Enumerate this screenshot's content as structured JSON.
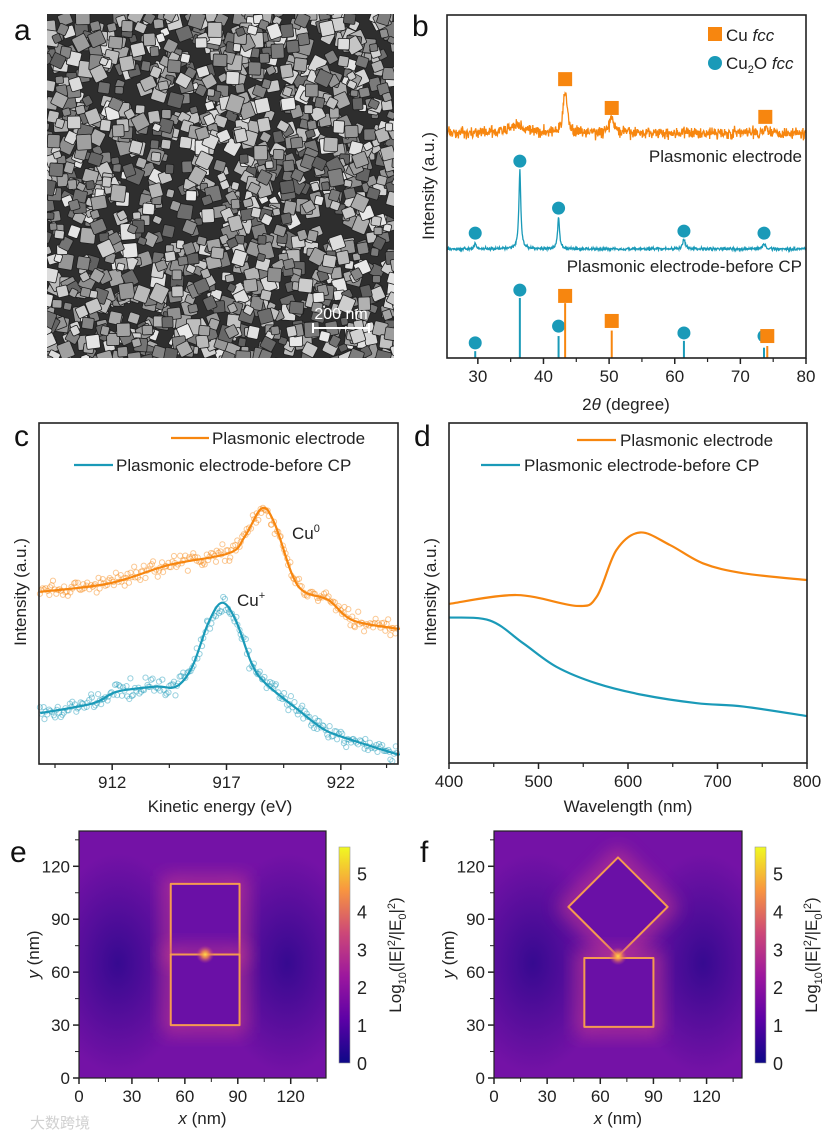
{
  "figure": {
    "panel_labels": {
      "a": "a",
      "b": "b",
      "c": "c",
      "d": "d",
      "e": "e",
      "f": "f"
    },
    "watermark": "大数跨境"
  },
  "panel_a": {
    "scale_bar": "200 nm"
  },
  "chart_data": [
    {
      "panel": "b",
      "type": "line",
      "xlabel": {
        "pre": "2",
        "theta": "θ",
        "post": " (degree)"
      },
      "ylabel": "Intensity (a.u.)",
      "xlim": [
        25.3,
        80
      ],
      "ylim": [
        0,
        100
      ],
      "xticks": [
        30,
        40,
        50,
        60,
        70,
        80
      ],
      "legend": {
        "cu": {
          "text": "Cu ",
          "italic": "fcc",
          "color": "#f7860f",
          "marker": "square"
        },
        "cu2o": {
          "text": "Cu",
          "sub": "2",
          "text2": "O ",
          "italic": "fcc",
          "color": "#1a9ab8",
          "marker": "circle"
        }
      },
      "series": [
        {
          "name": "Plasmonic electrode",
          "color": "#f7860f",
          "baseline": 65.6,
          "noise": 1.4,
          "peaks": [
            {
              "x": 36.0,
              "h": 2.5,
              "w": 1.2
            },
            {
              "x": 43.3,
              "h": 12.5,
              "w": 0.35
            },
            {
              "x": 50.4,
              "h": 4.5,
              "w": 0.4
            },
            {
              "x": 74.0,
              "h": 1.5,
              "w": 0.5
            }
          ],
          "markers": [
            {
              "x": 43.3,
              "y": 81.3,
              "shape": "square"
            },
            {
              "x": 50.4,
              "y": 72.9,
              "shape": "square"
            },
            {
              "x": 73.8,
              "y": 70.3,
              "shape": "square"
            }
          ]
        },
        {
          "name": "Plasmonic electrode-before CP",
          "color": "#1a9ab8",
          "baseline": 31.8,
          "noise": 0.35,
          "peaks": [
            {
              "x": 29.6,
              "h": 1.7,
              "w": 0.2
            },
            {
              "x": 36.4,
              "h": 23,
              "w": 0.18
            },
            {
              "x": 42.3,
              "h": 9.2,
              "w": 0.18
            },
            {
              "x": 61.4,
              "h": 2.6,
              "w": 0.25
            },
            {
              "x": 73.6,
              "h": 1.4,
              "w": 0.25
            }
          ],
          "markers": [
            {
              "x": 29.6,
              "y": 36.4,
              "shape": "circle"
            },
            {
              "x": 36.4,
              "y": 57.4,
              "shape": "circle"
            },
            {
              "x": 42.3,
              "y": 43.7,
              "shape": "circle"
            },
            {
              "x": 61.4,
              "y": 37.0,
              "shape": "circle"
            },
            {
              "x": 73.6,
              "y": 36.4,
              "shape": "circle"
            }
          ]
        }
      ],
      "reference": {
        "cu2o": {
          "color": "#1a9ab8",
          "sticks": [
            {
              "x": 29.6,
              "h": 2.0,
              "marker_y": 4.4
            },
            {
              "x": 36.4,
              "h": 17.5,
              "marker_y": 19.8
            },
            {
              "x": 42.3,
              "h": 6.4,
              "marker_y": 9.3
            },
            {
              "x": 61.4,
              "h": 5.0,
              "marker_y": 7.3
            },
            {
              "x": 73.6,
              "h": 3.0,
              "marker_y": 6.4
            }
          ]
        },
        "cu": {
          "color": "#f7860f",
          "sticks": [
            {
              "x": 43.3,
              "h": 16.0,
              "marker_y": 18.1
            },
            {
              "x": 50.4,
              "h": 8.0,
              "marker_y": 10.8
            },
            {
              "x": 74.1,
              "h": 3.5,
              "marker_y": 6.4
            }
          ]
        }
      },
      "annotations": {
        "top": "Plasmonic electrode",
        "middle": "Plasmonic electrode-before CP"
      }
    },
    {
      "panel": "c",
      "type": "scatter+line",
      "xlabel": "Kinetic energy (eV)",
      "ylabel": "Intensity (a.u.)",
      "xlim": [
        908.8,
        924.5
      ],
      "ylim": [
        0,
        1
      ],
      "xticks": [
        912,
        917,
        922
      ],
      "legend": [
        "Plasmonic electrode",
        "Plasmonic electrode-before CP"
      ],
      "annotations": {
        "cu0": {
          "base": "Cu",
          "sup": "0"
        },
        "cu1": {
          "base": "Cu",
          "sup": "+"
        }
      },
      "series": [
        {
          "name": "Plasmonic electrode",
          "color": "#f7860f",
          "x": [
            908.85,
            911.9,
            914.5,
            917.1,
            917.8,
            918.55,
            919.1,
            919.85,
            920.4,
            921.45,
            922.5,
            924.35,
            924.5
          ],
          "y": [
            0.505,
            0.53,
            0.584,
            0.618,
            0.667,
            0.75,
            0.706,
            0.559,
            0.505,
            0.481,
            0.422,
            0.398,
            0.398
          ]
        },
        {
          "name": "Plasmonic electrode-before CP",
          "color": "#1a9ab8",
          "x": [
            908.85,
            911.16,
            912.2,
            913.9,
            914.8,
            915.5,
            916.2,
            916.8,
            917.4,
            918.1,
            918.7,
            920.15,
            921.3,
            922.5,
            924.35,
            924.5
          ],
          "y": [
            0.149,
            0.178,
            0.212,
            0.227,
            0.227,
            0.285,
            0.413,
            0.473,
            0.422,
            0.295,
            0.237,
            0.158,
            0.1,
            0.07,
            0.031,
            0.03
          ]
        }
      ]
    },
    {
      "panel": "d",
      "type": "line",
      "xlabel": "Wavelength (nm)",
      "ylabel": "Intensity (a.u.)",
      "xlim": [
        400,
        800
      ],
      "ylim": [
        0,
        1
      ],
      "xticks": [
        400,
        500,
        600,
        700,
        800
      ],
      "legend": [
        "Plasmonic electrode",
        "Plasmonic electrode-before CP"
      ],
      "series": [
        {
          "name": "Plasmonic electrode",
          "color": "#f7860f",
          "x": [
            400,
            475.6,
            542.7,
            565,
            587,
            613.4,
            647,
            684,
            729,
            800
          ],
          "y": [
            0.468,
            0.494,
            0.462,
            0.489,
            0.626,
            0.678,
            0.641,
            0.587,
            0.558,
            0.538
          ]
        },
        {
          "name": "Plasmonic electrode-before CP",
          "color": "#1a9ab8",
          "x": [
            400,
            445.8,
            483,
            520,
            565,
            617,
            677,
            729,
            800
          ],
          "y": [
            0.428,
            0.419,
            0.352,
            0.283,
            0.234,
            0.2,
            0.176,
            0.166,
            0.138
          ]
        }
      ]
    },
    {
      "panel": "e",
      "type": "heatmap",
      "xlabel": {
        "var": "x",
        "unit": " (nm)"
      },
      "ylabel": {
        "var": "y",
        "unit": " (nm)"
      },
      "xlim": [
        0,
        140
      ],
      "ylim": [
        0,
        140
      ],
      "xticks": [
        0,
        30,
        60,
        90,
        120
      ],
      "yticks": [
        0,
        30,
        60,
        90,
        120
      ],
      "colorbar": {
        "range": [
          0,
          5.7
        ],
        "ticks": [
          0,
          1,
          2,
          3,
          4,
          5
        ],
        "label": {
          "a": "Log",
          "b": "10",
          "c": "(|E|",
          "d": "2",
          "e": "/|E",
          "f": "0",
          "g": "|",
          "h": "2",
          "i": ")"
        }
      },
      "shapes": [
        {
          "kind": "rect",
          "x": [
            52,
            91
          ],
          "y": [
            70,
            110
          ]
        },
        {
          "kind": "rect",
          "x": [
            52,
            91
          ],
          "y": [
            30,
            70
          ]
        }
      ],
      "hotspot": [
        71.5,
        70
      ]
    },
    {
      "panel": "f",
      "type": "heatmap",
      "xlabel": {
        "var": "x",
        "unit": " (nm)"
      },
      "ylabel": {
        "var": "y",
        "unit": " (nm)"
      },
      "xlim": [
        0,
        140
      ],
      "ylim": [
        0,
        140
      ],
      "xticks": [
        0,
        30,
        60,
        90,
        120
      ],
      "yticks": [
        0,
        30,
        60,
        90,
        120
      ],
      "colorbar": {
        "range": [
          0,
          5.7
        ],
        "ticks": [
          0,
          1,
          2,
          3,
          4,
          5
        ],
        "label": {
          "a": "Log",
          "b": "10",
          "c": "(|E|",
          "d": "2",
          "e": "/|E",
          "f": "0",
          "g": "|",
          "h": "2",
          "i": ")"
        }
      },
      "shapes": [
        {
          "kind": "diamond",
          "center": [
            70,
            97
          ],
          "half": 28
        },
        {
          "kind": "rect",
          "x": [
            51,
            90
          ],
          "y": [
            29,
            68
          ]
        }
      ],
      "hotspot": [
        70,
        69
      ]
    }
  ]
}
